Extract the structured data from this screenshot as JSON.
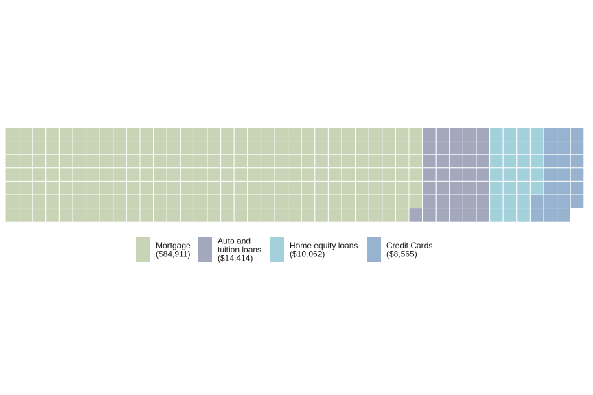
{
  "chart_data": {
    "type": "waffle",
    "unit_note": "each square = one unit; squares filled column-by-column, 7 rows",
    "rows": 7,
    "series": [
      {
        "name": "Mortgage",
        "label_lines": [
          "Mortgage",
          "($84,911)"
        ],
        "value": 84911,
        "squares": 216,
        "color": "#c8d4b5"
      },
      {
        "name": "Auto and tuition loans",
        "label_lines": [
          "Auto and",
          "tuition loans",
          "($14,414)"
        ],
        "value": 14414,
        "squares": 36,
        "color": "#a3a8bd"
      },
      {
        "name": "Home equity loans",
        "label_lines": [
          "Home equity loans",
          "($10,062)"
        ],
        "value": 10062,
        "squares": 26,
        "color": "#a2d1dc"
      },
      {
        "name": "Credit Cards",
        "label_lines": [
          "Credit Cards",
          "($8,565)"
        ],
        "value": 8565,
        "squares": 22,
        "color": "#97b3cf"
      }
    ],
    "legend_position": "bottom"
  }
}
